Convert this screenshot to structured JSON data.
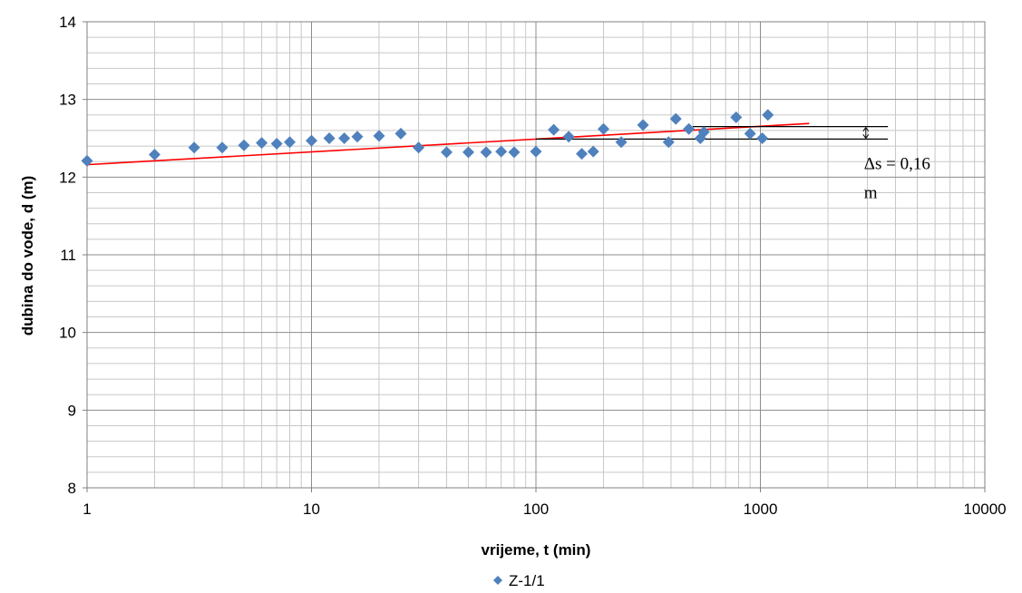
{
  "chart_data": {
    "type": "scatter",
    "title": "",
    "xlabel": "vrijeme, t (min)",
    "ylabel": "dubina do vode, d (m)",
    "x_scale": "log",
    "xlim": [
      1,
      10000
    ],
    "ylim": [
      8,
      14
    ],
    "x_ticks": [
      "1",
      "10",
      "100",
      "1000",
      "10000"
    ],
    "y_ticks": [
      "8",
      "9",
      "10",
      "11",
      "12",
      "13",
      "14"
    ],
    "grid": "on (major and minor, x log minor gridlines; y minor every 0.2)",
    "legend_position": "bottom",
    "series": [
      {
        "name": "Z-1/1",
        "marker": "diamond",
        "color": "#4F81BD",
        "x": [
          1,
          2,
          3,
          4,
          5,
          6,
          7,
          8,
          10,
          12,
          14,
          16,
          20,
          25,
          30,
          40,
          50,
          60,
          70,
          80,
          100,
          120,
          140,
          160,
          180,
          200,
          240,
          300,
          390,
          420,
          480,
          540,
          560,
          780,
          900,
          1020,
          1080
        ],
        "y": [
          12.21,
          12.29,
          12.38,
          12.38,
          12.41,
          12.44,
          12.43,
          12.45,
          12.47,
          12.5,
          12.5,
          12.52,
          12.53,
          12.56,
          12.38,
          12.32,
          12.32,
          12.32,
          12.33,
          12.32,
          12.33,
          12.61,
          12.52,
          12.3,
          12.33,
          12.62,
          12.45,
          12.67,
          12.45,
          12.75,
          12.62,
          12.5,
          12.58,
          12.77,
          12.56,
          12.5,
          12.8
        ]
      }
    ],
    "trendline": {
      "color": "#FF0000",
      "x": [
        1,
        1650
      ],
      "y": [
        12.16,
        12.69
      ]
    },
    "annotation": {
      "line1": "Δs = 0,16",
      "line2": "m",
      "upper_level": 12.65,
      "lower_level": 12.49,
      "upper_x_from": 500,
      "lower_x_from": 100,
      "x_to": 3700,
      "arrow_x": 2950
    }
  }
}
